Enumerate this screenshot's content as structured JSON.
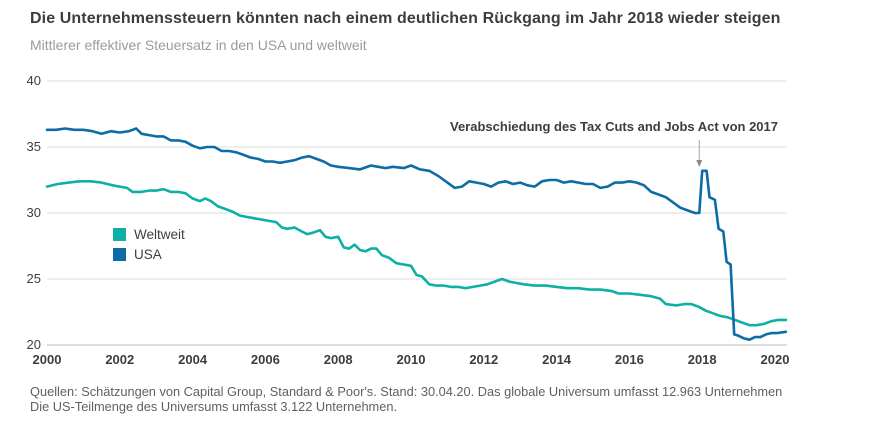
{
  "header": {
    "title": "Die Unternehmenssteuern könnten nach einem deutlichen Rückgang im Jahr 2018 wieder steigen",
    "subtitle": "Mittlerer effektiver Steuersatz in den USA und weltweit"
  },
  "footer": {
    "line1": "Quellen: Schätzungen von Capital Group, Standard & Poor's. Stand: 30.04.20. Das globale Universum umfasst 12.963 Unternehmen",
    "line2": "Die US-Teilmenge des Universums umfasst 3.122 Unternehmen."
  },
  "colors": {
    "background": "#ffffff",
    "title": "#3d3d3d",
    "subtitle": "#9b9b9b",
    "tick": "#3d3d3d",
    "grid": "#dcdcdc",
    "axis": "#bdbdbd",
    "annotation": "#3d3d3d",
    "annotation_line": "#a6a6a6",
    "footer": "#606060"
  },
  "chart_data": {
    "type": "line",
    "title": "Die Unternehmenssteuern könnten nach einem deutlichen Rückgang im Jahr 2018 wieder steigen",
    "subtitle": "Mittlerer effektiver Steuersatz in den USA und weltweit",
    "xlabel": "",
    "ylabel": "",
    "xlim": [
      2000,
      2020.33
    ],
    "ylim": [
      20,
      40
    ],
    "xticks": [
      2000,
      2002,
      2004,
      2006,
      2008,
      2010,
      2012,
      2014,
      2016,
      2018,
      2020
    ],
    "yticks": [
      20,
      25,
      30,
      35,
      40
    ],
    "grid": "horizontal",
    "legend_position": "inside-left",
    "annotation": {
      "text": "Verabschiedung des Tax Cuts and Jobs Act von 2017",
      "x_year": 2017.92,
      "y_value": 33.2
    },
    "series": [
      {
        "name": "Weltweit",
        "color": "#0db0a4",
        "points": [
          [
            2000.0,
            32.0
          ],
          [
            2000.3,
            32.2
          ],
          [
            2000.6,
            32.3
          ],
          [
            2000.9,
            32.4
          ],
          [
            2001.2,
            32.4
          ],
          [
            2001.5,
            32.3
          ],
          [
            2001.8,
            32.1
          ],
          [
            2002.0,
            32.0
          ],
          [
            2002.2,
            31.9
          ],
          [
            2002.35,
            31.6
          ],
          [
            2002.6,
            31.6
          ],
          [
            2002.8,
            31.7
          ],
          [
            2003.0,
            31.7
          ],
          [
            2003.2,
            31.8
          ],
          [
            2003.4,
            31.6
          ],
          [
            2003.6,
            31.6
          ],
          [
            2003.8,
            31.5
          ],
          [
            2004.0,
            31.1
          ],
          [
            2004.2,
            30.9
          ],
          [
            2004.35,
            31.1
          ],
          [
            2004.5,
            30.9
          ],
          [
            2004.7,
            30.5
          ],
          [
            2004.9,
            30.3
          ],
          [
            2005.1,
            30.1
          ],
          [
            2005.3,
            29.8
          ],
          [
            2005.5,
            29.7
          ],
          [
            2005.7,
            29.6
          ],
          [
            2005.9,
            29.5
          ],
          [
            2006.1,
            29.4
          ],
          [
            2006.3,
            29.3
          ],
          [
            2006.45,
            28.9
          ],
          [
            2006.6,
            28.8
          ],
          [
            2006.8,
            28.9
          ],
          [
            2007.0,
            28.6
          ],
          [
            2007.15,
            28.4
          ],
          [
            2007.3,
            28.5
          ],
          [
            2007.5,
            28.7
          ],
          [
            2007.65,
            28.2
          ],
          [
            2007.8,
            28.1
          ],
          [
            2008.0,
            28.2
          ],
          [
            2008.15,
            27.4
          ],
          [
            2008.3,
            27.3
          ],
          [
            2008.45,
            27.6
          ],
          [
            2008.6,
            27.2
          ],
          [
            2008.75,
            27.1
          ],
          [
            2008.9,
            27.3
          ],
          [
            2009.05,
            27.3
          ],
          [
            2009.2,
            26.8
          ],
          [
            2009.4,
            26.6
          ],
          [
            2009.6,
            26.2
          ],
          [
            2009.8,
            26.1
          ],
          [
            2010.0,
            26.0
          ],
          [
            2010.15,
            25.3
          ],
          [
            2010.3,
            25.2
          ],
          [
            2010.5,
            24.6
          ],
          [
            2010.7,
            24.5
          ],
          [
            2010.9,
            24.5
          ],
          [
            2011.1,
            24.4
          ],
          [
            2011.3,
            24.4
          ],
          [
            2011.5,
            24.3
          ],
          [
            2011.7,
            24.4
          ],
          [
            2011.9,
            24.5
          ],
          [
            2012.1,
            24.6
          ],
          [
            2012.3,
            24.8
          ],
          [
            2012.5,
            25.0
          ],
          [
            2012.7,
            24.8
          ],
          [
            2012.9,
            24.7
          ],
          [
            2013.1,
            24.6
          ],
          [
            2013.4,
            24.5
          ],
          [
            2013.7,
            24.5
          ],
          [
            2014.0,
            24.4
          ],
          [
            2014.3,
            24.3
          ],
          [
            2014.6,
            24.3
          ],
          [
            2014.9,
            24.2
          ],
          [
            2015.2,
            24.2
          ],
          [
            2015.5,
            24.1
          ],
          [
            2015.7,
            23.9
          ],
          [
            2016.0,
            23.9
          ],
          [
            2016.3,
            23.8
          ],
          [
            2016.6,
            23.7
          ],
          [
            2016.85,
            23.5
          ],
          [
            2017.0,
            23.1
          ],
          [
            2017.3,
            23.0
          ],
          [
            2017.5,
            23.1
          ],
          [
            2017.7,
            23.1
          ],
          [
            2017.9,
            22.9
          ],
          [
            2018.1,
            22.6
          ],
          [
            2018.3,
            22.4
          ],
          [
            2018.5,
            22.2
          ],
          [
            2018.7,
            22.1
          ],
          [
            2018.9,
            21.9
          ],
          [
            2019.1,
            21.7
          ],
          [
            2019.3,
            21.5
          ],
          [
            2019.5,
            21.5
          ],
          [
            2019.7,
            21.6
          ],
          [
            2019.9,
            21.8
          ],
          [
            2020.1,
            21.9
          ],
          [
            2020.3,
            21.9
          ]
        ]
      },
      {
        "name": "USA",
        "color": "#0d6ca6",
        "points": [
          [
            2000.0,
            36.3
          ],
          [
            2000.25,
            36.3
          ],
          [
            2000.5,
            36.4
          ],
          [
            2000.75,
            36.3
          ],
          [
            2001.0,
            36.3
          ],
          [
            2001.25,
            36.2
          ],
          [
            2001.5,
            36.0
          ],
          [
            2001.75,
            36.2
          ],
          [
            2002.0,
            36.1
          ],
          [
            2002.25,
            36.2
          ],
          [
            2002.45,
            36.4
          ],
          [
            2002.6,
            36.0
          ],
          [
            2002.8,
            35.9
          ],
          [
            2003.0,
            35.8
          ],
          [
            2003.2,
            35.8
          ],
          [
            2003.4,
            35.5
          ],
          [
            2003.6,
            35.5
          ],
          [
            2003.8,
            35.4
          ],
          [
            2004.0,
            35.1
          ],
          [
            2004.2,
            34.9
          ],
          [
            2004.4,
            35.0
          ],
          [
            2004.6,
            35.0
          ],
          [
            2004.8,
            34.7
          ],
          [
            2005.0,
            34.7
          ],
          [
            2005.2,
            34.6
          ],
          [
            2005.4,
            34.4
          ],
          [
            2005.6,
            34.2
          ],
          [
            2005.8,
            34.1
          ],
          [
            2006.0,
            33.9
          ],
          [
            2006.2,
            33.9
          ],
          [
            2006.4,
            33.8
          ],
          [
            2006.6,
            33.9
          ],
          [
            2006.8,
            34.0
          ],
          [
            2007.0,
            34.2
          ],
          [
            2007.2,
            34.3
          ],
          [
            2007.4,
            34.1
          ],
          [
            2007.6,
            33.9
          ],
          [
            2007.8,
            33.6
          ],
          [
            2008.0,
            33.5
          ],
          [
            2008.3,
            33.4
          ],
          [
            2008.6,
            33.3
          ],
          [
            2008.9,
            33.6
          ],
          [
            2009.1,
            33.5
          ],
          [
            2009.3,
            33.4
          ],
          [
            2009.5,
            33.5
          ],
          [
            2009.8,
            33.4
          ],
          [
            2010.0,
            33.6
          ],
          [
            2010.25,
            33.3
          ],
          [
            2010.5,
            33.2
          ],
          [
            2010.75,
            32.8
          ],
          [
            2011.0,
            32.3
          ],
          [
            2011.2,
            31.9
          ],
          [
            2011.4,
            32.0
          ],
          [
            2011.6,
            32.4
          ],
          [
            2011.8,
            32.3
          ],
          [
            2012.0,
            32.2
          ],
          [
            2012.2,
            32.0
          ],
          [
            2012.4,
            32.3
          ],
          [
            2012.6,
            32.4
          ],
          [
            2012.8,
            32.2
          ],
          [
            2013.0,
            32.3
          ],
          [
            2013.2,
            32.1
          ],
          [
            2013.4,
            32.0
          ],
          [
            2013.6,
            32.4
          ],
          [
            2013.8,
            32.5
          ],
          [
            2014.0,
            32.5
          ],
          [
            2014.2,
            32.3
          ],
          [
            2014.4,
            32.4
          ],
          [
            2014.6,
            32.3
          ],
          [
            2014.8,
            32.2
          ],
          [
            2015.0,
            32.2
          ],
          [
            2015.2,
            31.9
          ],
          [
            2015.4,
            32.0
          ],
          [
            2015.6,
            32.3
          ],
          [
            2015.8,
            32.3
          ],
          [
            2016.0,
            32.4
          ],
          [
            2016.2,
            32.3
          ],
          [
            2016.4,
            32.1
          ],
          [
            2016.6,
            31.6
          ],
          [
            2016.8,
            31.4
          ],
          [
            2017.0,
            31.2
          ],
          [
            2017.2,
            30.8
          ],
          [
            2017.4,
            30.4
          ],
          [
            2017.6,
            30.2
          ],
          [
            2017.8,
            30.0
          ],
          [
            2017.92,
            30.0
          ],
          [
            2018.0,
            33.2
          ],
          [
            2018.12,
            33.2
          ],
          [
            2018.2,
            31.2
          ],
          [
            2018.35,
            31.0
          ],
          [
            2018.45,
            28.8
          ],
          [
            2018.58,
            28.6
          ],
          [
            2018.67,
            26.3
          ],
          [
            2018.78,
            26.1
          ],
          [
            2018.88,
            20.8
          ],
          [
            2019.0,
            20.7
          ],
          [
            2019.15,
            20.5
          ],
          [
            2019.3,
            20.4
          ],
          [
            2019.45,
            20.6
          ],
          [
            2019.6,
            20.6
          ],
          [
            2019.75,
            20.8
          ],
          [
            2019.9,
            20.9
          ],
          [
            2020.05,
            20.9
          ],
          [
            2020.3,
            21.0
          ]
        ]
      }
    ]
  }
}
